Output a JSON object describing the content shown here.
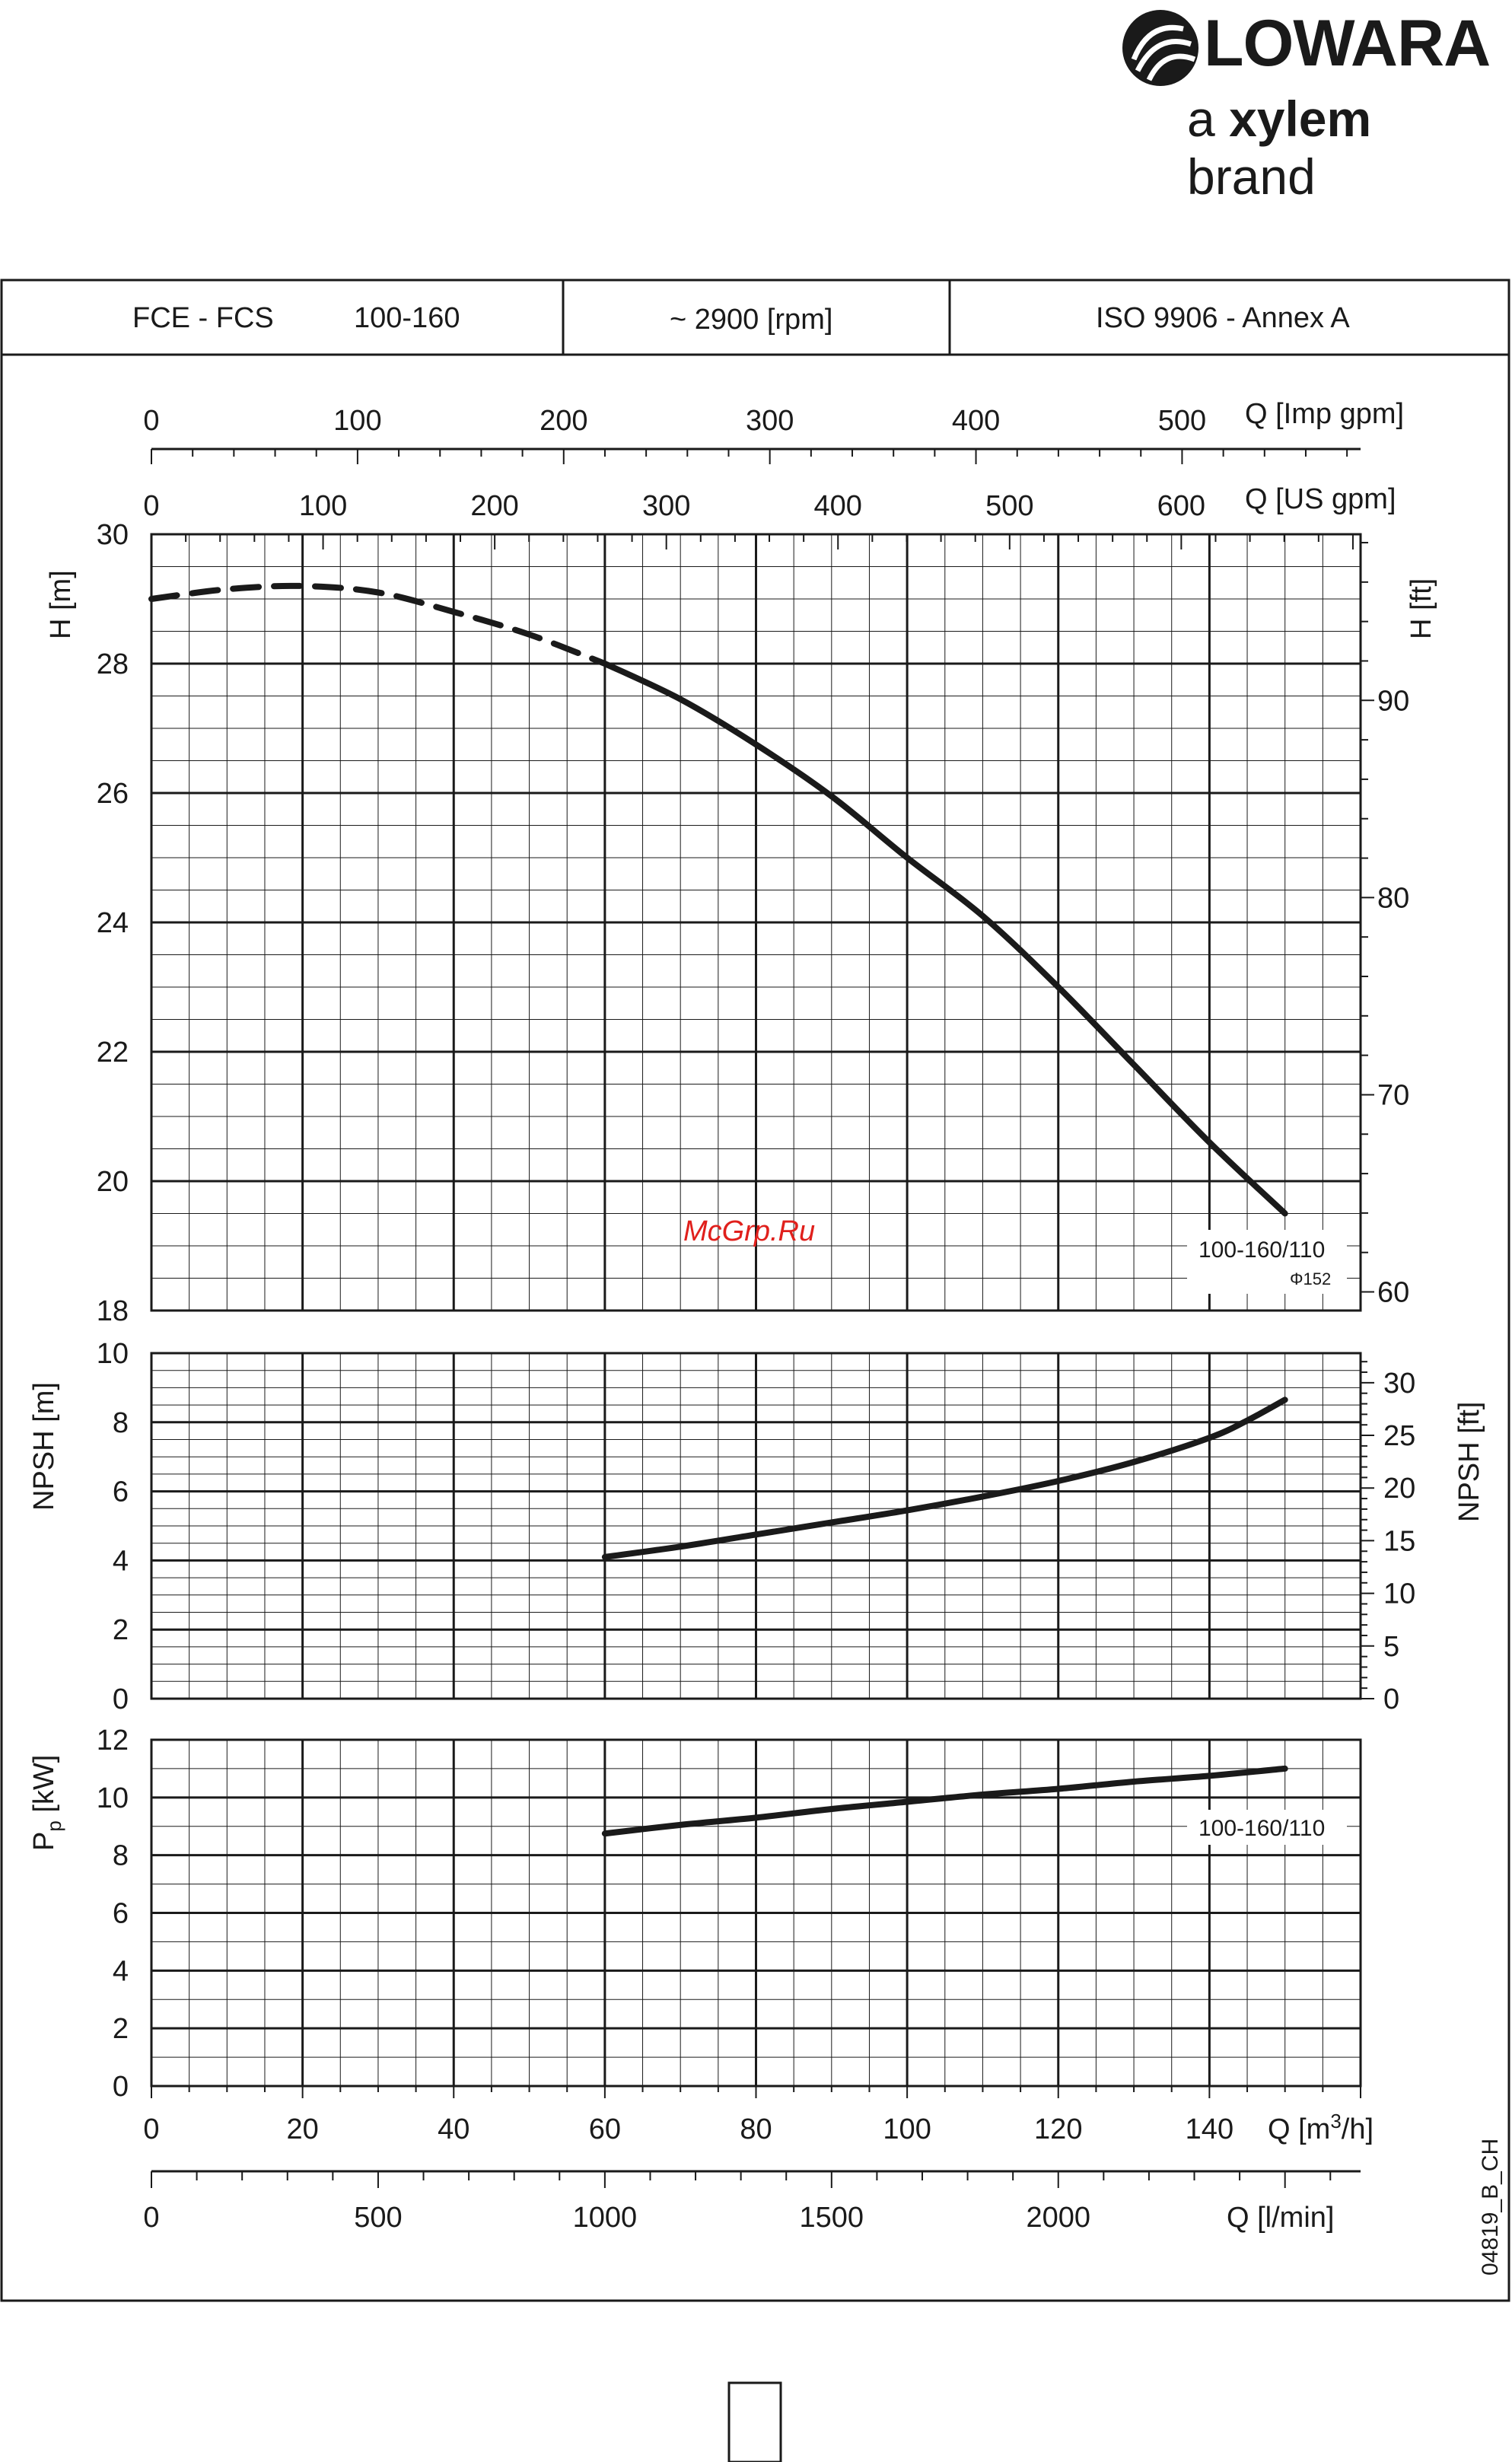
{
  "logo": {
    "brand": "LOWARA",
    "tagline_prefix": "a",
    "tagline_bold": "xylem",
    "tagline_suffix": "brand"
  },
  "header": {
    "model": "FCE - FCS",
    "size": "100-160",
    "speed": "~ 2900 [rpm]",
    "standard": "ISO 9906 - Annex A"
  },
  "watermark": "McGrp.Ru",
  "drawing_code": "04819_B_CH",
  "colors": {
    "ink": "#1a1a1a",
    "watermark": "#e0201c",
    "grid": "#1a1a1a"
  },
  "axes": {
    "imp_gpm": {
      "label": "Q [Imp gpm]",
      "ticks": [
        "0",
        "100",
        "200",
        "300",
        "400",
        "500"
      ]
    },
    "us_gpm": {
      "label": "Q [US gpm]",
      "ticks": [
        "0",
        "100",
        "200",
        "300",
        "400",
        "500",
        "600"
      ]
    },
    "head_m": {
      "label": "H [m]",
      "ticks": [
        "18",
        "20",
        "22",
        "24",
        "26",
        "28",
        "30"
      ]
    },
    "head_ft": {
      "label": "H [ft]",
      "ticks": [
        "60",
        "70",
        "80",
        "90"
      ]
    },
    "npsh_m": {
      "label": "NPSH [m]",
      "ticks": [
        "0",
        "2",
        "4",
        "6",
        "8",
        "10"
      ]
    },
    "npsh_ft": {
      "label": "NPSH [ft]",
      "ticks": [
        "0",
        "5",
        "10",
        "15",
        "20",
        "25",
        "30"
      ]
    },
    "power_kw": {
      "label": "P",
      "label_sub": "p",
      "label_unit": " [kW]",
      "ticks": [
        "0",
        "2",
        "4",
        "6",
        "8",
        "10",
        "12"
      ]
    },
    "flow_m3h": {
      "label": "Q [m",
      "label_sup": "3",
      "label_end": "/h]",
      "ticks": [
        "0",
        "20",
        "40",
        "60",
        "80",
        "100",
        "120",
        "140"
      ]
    },
    "flow_lmin": {
      "label": "Q [l/min]",
      "ticks": [
        "0",
        "500",
        "1000",
        "1500",
        "2000"
      ]
    }
  },
  "curve_labels": {
    "head_model": "100-160/110",
    "head_diameter": "Φ152",
    "power_model": "100-160/110"
  },
  "chart_data": [
    {
      "type": "line",
      "title": "",
      "xlabel": "Q [m3/h]",
      "ylabel": "H [m]",
      "xlim": [
        0,
        160
      ],
      "ylim": [
        18,
        30
      ],
      "series": [
        {
          "name": "100-160/110",
          "style": "dashed",
          "x": [
            0,
            10,
            20,
            30,
            40,
            50,
            60
          ],
          "y": [
            29.0,
            29.15,
            29.2,
            29.1,
            28.8,
            28.45,
            28.0
          ]
        },
        {
          "name": "100-160/110",
          "style": "solid",
          "x": [
            60,
            70,
            80,
            90,
            100,
            110,
            120,
            130,
            140,
            150
          ],
          "y": [
            28.0,
            27.45,
            26.75,
            25.95,
            25.0,
            24.1,
            23.0,
            21.8,
            20.6,
            19.5
          ]
        }
      ]
    },
    {
      "type": "line",
      "title": "",
      "xlabel": "Q [m3/h]",
      "ylabel": "NPSH [m]",
      "xlim": [
        0,
        160
      ],
      "ylim": [
        0,
        10
      ],
      "series": [
        {
          "x": [
            60,
            70,
            80,
            90,
            100,
            110,
            120,
            130,
            140,
            145,
            150
          ],
          "y": [
            4.1,
            4.4,
            4.75,
            5.1,
            5.45,
            5.85,
            6.3,
            6.85,
            7.55,
            8.05,
            8.65
          ]
        }
      ]
    },
    {
      "type": "line",
      "title": "",
      "xlabel": "Q [m3/h]",
      "ylabel": "Pp [kW]",
      "xlim": [
        0,
        160
      ],
      "ylim": [
        0,
        12
      ],
      "series": [
        {
          "name": "100-160/110",
          "x": [
            60,
            70,
            80,
            90,
            100,
            110,
            120,
            130,
            140,
            150
          ],
          "y": [
            8.75,
            9.05,
            9.3,
            9.6,
            9.85,
            10.1,
            10.3,
            10.55,
            10.75,
            11.0
          ]
        }
      ]
    }
  ]
}
